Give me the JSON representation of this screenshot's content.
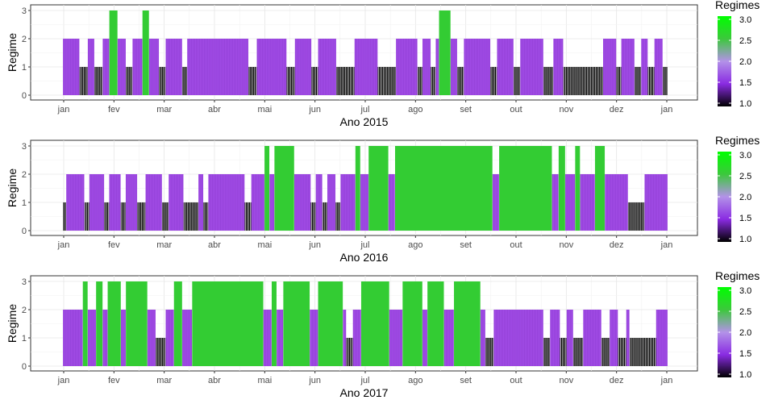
{
  "chart_data": [
    {
      "type": "bar",
      "xlabel": "Ano 2015",
      "ylabel": "Regime",
      "ylim": [
        0,
        3
      ],
      "y_ticks": [
        "0",
        "1",
        "2",
        "3"
      ],
      "x_tick_labels": [
        "jan",
        "fev",
        "mar",
        "abr",
        "mai",
        "jun",
        "jul",
        "ago",
        "set",
        "out",
        "nov",
        "dez",
        "jan"
      ],
      "legend": {
        "title": "Regimes",
        "ticks": [
          "3.0",
          "2.5",
          "2.0",
          "1.5",
          "1.0"
        ],
        "placement": "right"
      },
      "grid": true,
      "regime_runs": [
        {
          "start": 1,
          "end": 10,
          "regime": 2
        },
        {
          "start": 11,
          "end": 15,
          "regime": 1
        },
        {
          "start": 16,
          "end": 19,
          "regime": 2
        },
        {
          "start": 20,
          "end": 24,
          "regime": 1
        },
        {
          "start": 25,
          "end": 28,
          "regime": 2
        },
        {
          "start": 29,
          "end": 33,
          "regime": 3
        },
        {
          "start": 34,
          "end": 38,
          "regime": 2
        },
        {
          "start": 39,
          "end": 42,
          "regime": 1
        },
        {
          "start": 43,
          "end": 48,
          "regime": 2
        },
        {
          "start": 49,
          "end": 52,
          "regime": 3
        },
        {
          "start": 53,
          "end": 58,
          "regime": 2
        },
        {
          "start": 59,
          "end": 62,
          "regime": 1
        },
        {
          "start": 63,
          "end": 72,
          "regime": 2
        },
        {
          "start": 73,
          "end": 75,
          "regime": 1
        },
        {
          "start": 76,
          "end": 112,
          "regime": 2
        },
        {
          "start": 113,
          "end": 117,
          "regime": 1
        },
        {
          "start": 118,
          "end": 135,
          "regime": 2
        },
        {
          "start": 136,
          "end": 140,
          "regime": 1
        },
        {
          "start": 141,
          "end": 150,
          "regime": 2
        },
        {
          "start": 151,
          "end": 154,
          "regime": 1
        },
        {
          "start": 155,
          "end": 165,
          "regime": 2
        },
        {
          "start": 166,
          "end": 176,
          "regime": 1
        },
        {
          "start": 177,
          "end": 190,
          "regime": 2
        },
        {
          "start": 191,
          "end": 201,
          "regime": 1
        },
        {
          "start": 202,
          "end": 214,
          "regime": 2
        },
        {
          "start": 215,
          "end": 217,
          "regime": 1
        },
        {
          "start": 218,
          "end": 222,
          "regime": 2
        },
        {
          "start": 223,
          "end": 225,
          "regime": 1
        },
        {
          "start": 226,
          "end": 227,
          "regime": 2
        },
        {
          "start": 228,
          "end": 234,
          "regime": 3
        },
        {
          "start": 235,
          "end": 238,
          "regime": 2
        },
        {
          "start": 239,
          "end": 242,
          "regime": 1
        },
        {
          "start": 243,
          "end": 258,
          "regime": 2
        },
        {
          "start": 259,
          "end": 262,
          "regime": 1
        },
        {
          "start": 263,
          "end": 272,
          "regime": 2
        },
        {
          "start": 273,
          "end": 276,
          "regime": 1
        },
        {
          "start": 277,
          "end": 290,
          "regime": 2
        },
        {
          "start": 291,
          "end": 296,
          "regime": 1
        },
        {
          "start": 297,
          "end": 302,
          "regime": 2
        },
        {
          "start": 303,
          "end": 326,
          "regime": 1
        },
        {
          "start": 327,
          "end": 334,
          "regime": 2
        },
        {
          "start": 335,
          "end": 337,
          "regime": 1
        },
        {
          "start": 338,
          "end": 345,
          "regime": 2
        },
        {
          "start": 346,
          "end": 349,
          "regime": 1
        },
        {
          "start": 350,
          "end": 353,
          "regime": 2
        },
        {
          "start": 354,
          "end": 357,
          "regime": 1
        },
        {
          "start": 358,
          "end": 362,
          "regime": 2
        },
        {
          "start": 363,
          "end": 365,
          "regime": 1
        }
      ]
    },
    {
      "type": "bar",
      "xlabel": "Ano 2016",
      "ylabel": "Regime",
      "ylim": [
        0,
        3
      ],
      "y_ticks": [
        "0",
        "1",
        "2",
        "3"
      ],
      "x_tick_labels": [
        "jan",
        "fev",
        "mar",
        "abr",
        "mai",
        "jun",
        "jul",
        "ago",
        "set",
        "out",
        "nov",
        "dez",
        "jan"
      ],
      "legend": {
        "title": "Regimes",
        "ticks": [
          "3.0",
          "2.5",
          "2.0",
          "1.5",
          "1.0"
        ],
        "placement": "right"
      },
      "grid": true,
      "regime_runs": [
        {
          "start": 1,
          "end": 2,
          "regime": 1
        },
        {
          "start": 3,
          "end": 13,
          "regime": 2
        },
        {
          "start": 14,
          "end": 16,
          "regime": 1
        },
        {
          "start": 17,
          "end": 25,
          "regime": 2
        },
        {
          "start": 26,
          "end": 28,
          "regime": 1
        },
        {
          "start": 29,
          "end": 35,
          "regime": 2
        },
        {
          "start": 36,
          "end": 38,
          "regime": 1
        },
        {
          "start": 39,
          "end": 45,
          "regime": 2
        },
        {
          "start": 46,
          "end": 50,
          "regime": 1
        },
        {
          "start": 51,
          "end": 60,
          "regime": 2
        },
        {
          "start": 61,
          "end": 64,
          "regime": 1
        },
        {
          "start": 65,
          "end": 73,
          "regime": 2
        },
        {
          "start": 74,
          "end": 82,
          "regime": 1
        },
        {
          "start": 83,
          "end": 85,
          "regime": 2
        },
        {
          "start": 86,
          "end": 88,
          "regime": 1
        },
        {
          "start": 89,
          "end": 110,
          "regime": 2
        },
        {
          "start": 111,
          "end": 114,
          "regime": 1
        },
        {
          "start": 115,
          "end": 122,
          "regime": 2
        },
        {
          "start": 123,
          "end": 125,
          "regime": 3
        },
        {
          "start": 126,
          "end": 128,
          "regime": 2
        },
        {
          "start": 129,
          "end": 140,
          "regime": 3
        },
        {
          "start": 141,
          "end": 150,
          "regime": 2
        },
        {
          "start": 151,
          "end": 153,
          "regime": 1
        },
        {
          "start": 154,
          "end": 157,
          "regime": 2
        },
        {
          "start": 158,
          "end": 160,
          "regime": 1
        },
        {
          "start": 161,
          "end": 165,
          "regime": 2
        },
        {
          "start": 166,
          "end": 168,
          "regime": 1
        },
        {
          "start": 169,
          "end": 177,
          "regime": 2
        },
        {
          "start": 178,
          "end": 180,
          "regime": 3
        },
        {
          "start": 181,
          "end": 185,
          "regime": 2
        },
        {
          "start": 186,
          "end": 197,
          "regime": 3
        },
        {
          "start": 198,
          "end": 201,
          "regime": 2
        },
        {
          "start": 202,
          "end": 260,
          "regime": 3
        },
        {
          "start": 261,
          "end": 264,
          "regime": 2
        },
        {
          "start": 265,
          "end": 296,
          "regime": 3
        },
        {
          "start": 297,
          "end": 300,
          "regime": 2
        },
        {
          "start": 301,
          "end": 304,
          "regime": 3
        },
        {
          "start": 305,
          "end": 310,
          "regime": 2
        },
        {
          "start": 311,
          "end": 313,
          "regime": 3
        },
        {
          "start": 314,
          "end": 322,
          "regime": 2
        },
        {
          "start": 323,
          "end": 328,
          "regime": 3
        },
        {
          "start": 329,
          "end": 342,
          "regime": 2
        },
        {
          "start": 343,
          "end": 352,
          "regime": 1
        },
        {
          "start": 353,
          "end": 366,
          "regime": 2
        }
      ]
    },
    {
      "type": "bar",
      "xlabel": "Ano 2017",
      "ylabel": "Regime",
      "ylim": [
        0,
        3
      ],
      "y_ticks": [
        "0",
        "1",
        "2",
        "3"
      ],
      "x_tick_labels": [
        "jan",
        "fev",
        "mar",
        "abr",
        "mai",
        "jun",
        "jul",
        "ago",
        "set",
        "out",
        "nov",
        "dez",
        "jan"
      ],
      "legend": {
        "title": "Regimes",
        "ticks": [
          "3.0",
          "2.5",
          "2.0",
          "1.5",
          "1.0"
        ],
        "placement": "right"
      },
      "grid": true,
      "regime_runs": [
        {
          "start": 1,
          "end": 12,
          "regime": 2
        },
        {
          "start": 13,
          "end": 15,
          "regime": 3
        },
        {
          "start": 16,
          "end": 20,
          "regime": 2
        },
        {
          "start": 21,
          "end": 24,
          "regime": 3
        },
        {
          "start": 25,
          "end": 27,
          "regime": 2
        },
        {
          "start": 28,
          "end": 35,
          "regime": 3
        },
        {
          "start": 36,
          "end": 38,
          "regime": 2
        },
        {
          "start": 39,
          "end": 51,
          "regime": 3
        },
        {
          "start": 52,
          "end": 56,
          "regime": 2
        },
        {
          "start": 57,
          "end": 62,
          "regime": 1
        },
        {
          "start": 63,
          "end": 67,
          "regime": 2
        },
        {
          "start": 68,
          "end": 72,
          "regime": 3
        },
        {
          "start": 73,
          "end": 78,
          "regime": 2
        },
        {
          "start": 79,
          "end": 121,
          "regime": 3
        },
        {
          "start": 122,
          "end": 126,
          "regime": 2
        },
        {
          "start": 127,
          "end": 129,
          "regime": 3
        },
        {
          "start": 130,
          "end": 133,
          "regime": 2
        },
        {
          "start": 134,
          "end": 149,
          "regime": 3
        },
        {
          "start": 150,
          "end": 154,
          "regime": 2
        },
        {
          "start": 155,
          "end": 169,
          "regime": 3
        },
        {
          "start": 170,
          "end": 171,
          "regime": 2
        },
        {
          "start": 172,
          "end": 175,
          "regime": 1
        },
        {
          "start": 176,
          "end": 180,
          "regime": 2
        },
        {
          "start": 181,
          "end": 197,
          "regime": 3
        },
        {
          "start": 198,
          "end": 205,
          "regime": 2
        },
        {
          "start": 206,
          "end": 217,
          "regime": 3
        },
        {
          "start": 218,
          "end": 220,
          "regime": 2
        },
        {
          "start": 221,
          "end": 230,
          "regime": 3
        },
        {
          "start": 231,
          "end": 236,
          "regime": 2
        },
        {
          "start": 237,
          "end": 252,
          "regime": 3
        },
        {
          "start": 253,
          "end": 255,
          "regime": 2
        },
        {
          "start": 256,
          "end": 260,
          "regime": 1
        },
        {
          "start": 261,
          "end": 290,
          "regime": 2
        },
        {
          "start": 291,
          "end": 294,
          "regime": 1
        },
        {
          "start": 295,
          "end": 300,
          "regime": 2
        },
        {
          "start": 301,
          "end": 304,
          "regime": 1
        },
        {
          "start": 305,
          "end": 308,
          "regime": 2
        },
        {
          "start": 309,
          "end": 314,
          "regime": 1
        },
        {
          "start": 315,
          "end": 325,
          "regime": 2
        },
        {
          "start": 326,
          "end": 330,
          "regime": 1
        },
        {
          "start": 331,
          "end": 335,
          "regime": 2
        },
        {
          "start": 336,
          "end": 340,
          "regime": 1
        },
        {
          "start": 341,
          "end": 342,
          "regime": 2
        },
        {
          "start": 343,
          "end": 358,
          "regime": 1
        },
        {
          "start": 359,
          "end": 365,
          "regime": 2
        }
      ]
    }
  ],
  "colors": {
    "regime_1": "#000000",
    "regime_2": "#a14ce6",
    "regime_3": "#33cc33",
    "gradient": [
      "#000000",
      "#8a2be2",
      "#b392e8",
      "#3cc83c",
      "#00ff00"
    ]
  }
}
